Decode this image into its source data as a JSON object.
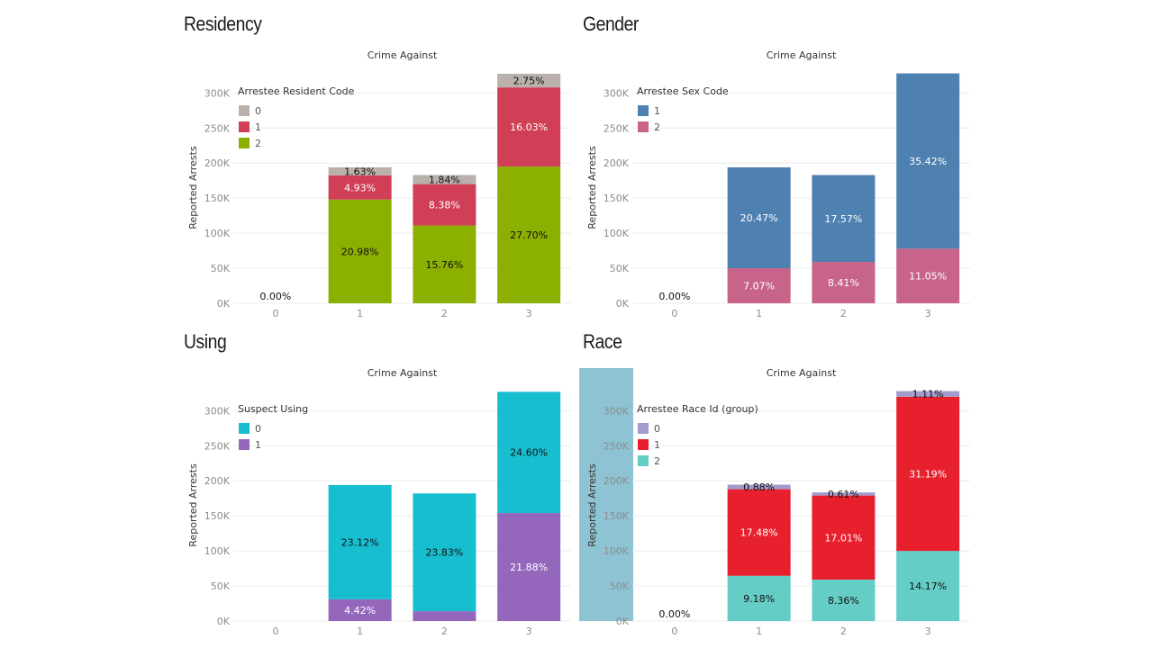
{
  "chart_data": [
    {
      "id": "residency",
      "type": "bar",
      "stacked": true,
      "title": "Residency",
      "subtitle": "Crime Against",
      "ylabel": "Reported Arrests",
      "ylim": [
        0,
        330000
      ],
      "yticks": [
        0,
        50000,
        100000,
        150000,
        200000,
        250000,
        300000
      ],
      "ytick_labels": [
        "0K",
        "50K",
        "100K",
        "150K",
        "200K",
        "250K",
        "300K"
      ],
      "categories": [
        "0",
        "1",
        "2",
        "3"
      ],
      "legend_title": "Arrestee Resident Code",
      "legend_position": "top-left",
      "series": [
        {
          "name": "2",
          "color": "#8cb000",
          "label_color": "#111111",
          "values": [
            0,
            148000,
            111000,
            195000
          ],
          "labels": [
            "0.00%",
            "20.98%",
            "15.76%",
            "27.70%"
          ]
        },
        {
          "name": "1",
          "color": "#d03f55",
          "label_color": "#ffffff",
          "values": [
            0,
            34500,
            59000,
            113000
          ],
          "labels": [
            "",
            "4.93%",
            "8.38%",
            "16.03%"
          ]
        },
        {
          "name": "0",
          "color": "#bab0ac",
          "label_color": "#111111",
          "values": [
            0,
            11500,
            13000,
            19500
          ],
          "labels": [
            "",
            "1.63%",
            "1.84%",
            "2.75%"
          ]
        }
      ],
      "legend_order": [
        "0",
        "1",
        "2"
      ]
    },
    {
      "id": "gender",
      "type": "bar",
      "stacked": true,
      "title": "Gender",
      "subtitle": "Crime Against",
      "ylabel": "Reported Arrests",
      "ylim": [
        0,
        330000
      ],
      "yticks": [
        0,
        50000,
        100000,
        150000,
        200000,
        250000,
        300000
      ],
      "ytick_labels": [
        "0K",
        "50K",
        "100K",
        "150K",
        "200K",
        "250K",
        "300K"
      ],
      "categories": [
        "0",
        "1",
        "2",
        "3"
      ],
      "legend_title": "Arrestee Sex Code",
      "legend_position": "top-left",
      "series": [
        {
          "name": "2",
          "color": "#c8648a",
          "label_color": "#ffffff",
          "values": [
            0,
            50000,
            59000,
            78000
          ],
          "labels": [
            "0.00%",
            "7.07%",
            "8.41%",
            "11.05%"
          ]
        },
        {
          "name": "1",
          "color": "#4e80b0",
          "label_color": "#ffffff",
          "values": [
            0,
            144000,
            124000,
            250000
          ],
          "labels": [
            "",
            "20.47%",
            "17.57%",
            "35.42%"
          ]
        }
      ],
      "legend_order": [
        "1",
        "2"
      ]
    },
    {
      "id": "using",
      "type": "bar",
      "stacked": true,
      "title": "Using",
      "subtitle": "Crime Against",
      "ylabel": "Reported Arrests",
      "ylim": [
        0,
        330000
      ],
      "yticks": [
        0,
        50000,
        100000,
        150000,
        200000,
        250000,
        300000
      ],
      "ytick_labels": [
        "0K",
        "50K",
        "100K",
        "150K",
        "200K",
        "250K",
        "300K"
      ],
      "categories": [
        "0",
        "1",
        "2",
        "3"
      ],
      "legend_title": "Suspect Using",
      "legend_position": "top-left",
      "series": [
        {
          "name": "1",
          "color": "#9467bd",
          "label_color": "#ffffff",
          "values": [
            0,
            31000,
            14000,
            154000
          ],
          "labels": [
            "",
            "4.42%",
            "",
            "21.88%"
          ]
        },
        {
          "name": "0",
          "color": "#17becf",
          "label_color": "#111111",
          "values": [
            0,
            163000,
            168000,
            173000
          ],
          "labels": [
            "",
            "23.12%",
            "23.83%",
            "24.60%"
          ]
        }
      ],
      "legend_order": [
        "0",
        "1"
      ]
    },
    {
      "id": "race",
      "type": "bar",
      "stacked": true,
      "title": "Race",
      "subtitle": "Crime Against",
      "ylabel": "Reported Arrests",
      "ylim": [
        0,
        330000
      ],
      "yticks": [
        0,
        50000,
        100000,
        150000,
        200000,
        250000,
        300000
      ],
      "ytick_labels": [
        "0K",
        "50K",
        "100K",
        "150K",
        "200K",
        "250K",
        "300K"
      ],
      "categories": [
        "0",
        "1",
        "2",
        "3"
      ],
      "legend_title": "Arrestee Race Id (group)",
      "legend_position": "top-left",
      "axis_highlight_color": "#8ec3d3",
      "series": [
        {
          "name": "2",
          "color": "#64cdc6",
          "label_color": "#111111",
          "values": [
            0,
            64500,
            59000,
            100000
          ],
          "labels": [
            "0.00%",
            "9.18%",
            "8.36%",
            "14.17%"
          ]
        },
        {
          "name": "1",
          "color": "#e8202e",
          "label_color": "#ffffff",
          "values": [
            0,
            123500,
            120000,
            220000
          ],
          "labels": [
            "",
            "17.48%",
            "17.01%",
            "31.19%"
          ]
        },
        {
          "name": "0",
          "color": "#a29ccd",
          "label_color": "#111111",
          "values": [
            0,
            6500,
            4500,
            8000
          ],
          "labels": [
            "",
            "0.88%",
            "0.61%",
            "1.11%"
          ]
        }
      ],
      "legend_order": [
        "0",
        "1",
        "2"
      ]
    }
  ]
}
